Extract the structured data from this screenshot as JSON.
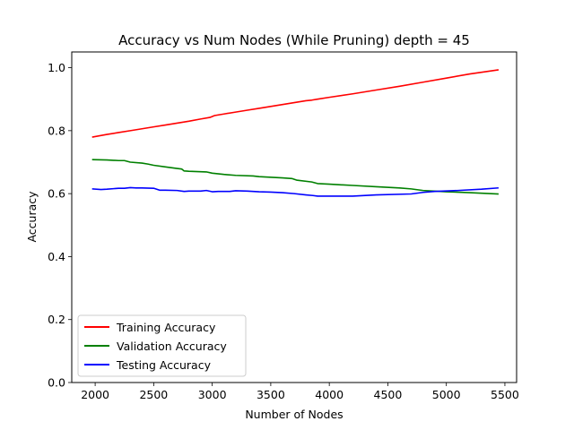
{
  "chart_data": {
    "type": "line",
    "title": "Accuracy vs Num Nodes (While Pruning) depth = 45",
    "xlabel": "Number of Nodes",
    "ylabel": "Accuracy",
    "xlim": [
      1800,
      5600
    ],
    "ylim": [
      0.0,
      1.05
    ],
    "xticks": [
      2000,
      2500,
      3000,
      3500,
      4000,
      4500,
      5000,
      5500
    ],
    "yticks": [
      0.0,
      0.2,
      0.4,
      0.6,
      0.8,
      1.0
    ],
    "grid": false,
    "legend_position": "lower-left",
    "series": [
      {
        "name": "Training Accuracy",
        "color": "#ff0000",
        "x": [
          1980,
          2100,
          2200,
          2300,
          2400,
          2500,
          2600,
          2700,
          2800,
          2900,
          2980,
          3020,
          3100,
          3200,
          3300,
          3400,
          3500,
          3600,
          3700,
          3800,
          3850,
          3900,
          4000,
          4200,
          4400,
          4600,
          4800,
          5000,
          5200,
          5440
        ],
        "values": [
          0.78,
          0.788,
          0.794,
          0.8,
          0.806,
          0.812,
          0.818,
          0.824,
          0.83,
          0.837,
          0.842,
          0.848,
          0.853,
          0.859,
          0.865,
          0.871,
          0.877,
          0.883,
          0.889,
          0.895,
          0.897,
          0.9,
          0.906,
          0.917,
          0.929,
          0.941,
          0.954,
          0.967,
          0.98,
          0.993
        ]
      },
      {
        "name": "Validation Accuracy",
        "color": "#008000",
        "x": [
          1980,
          2100,
          2200,
          2250,
          2300,
          2400,
          2450,
          2500,
          2600,
          2700,
          2740,
          2760,
          2800,
          2950,
          3000,
          3100,
          3200,
          3350,
          3400,
          3600,
          3680,
          3720,
          3850,
          3900,
          4000,
          4200,
          4400,
          4600,
          4700,
          4800,
          5000,
          5200,
          5440
        ],
        "values": [
          0.708,
          0.707,
          0.705,
          0.705,
          0.7,
          0.697,
          0.694,
          0.69,
          0.685,
          0.68,
          0.678,
          0.672,
          0.671,
          0.669,
          0.665,
          0.661,
          0.658,
          0.656,
          0.654,
          0.65,
          0.648,
          0.643,
          0.637,
          0.632,
          0.63,
          0.626,
          0.622,
          0.618,
          0.615,
          0.61,
          0.606,
          0.603,
          0.599
        ]
      },
      {
        "name": "Testing Accuracy",
        "color": "#0000ff",
        "x": [
          1980,
          2050,
          2100,
          2200,
          2250,
          2300,
          2350,
          2400,
          2500,
          2550,
          2600,
          2700,
          2760,
          2800,
          2900,
          2950,
          3000,
          3050,
          3100,
          3150,
          3200,
          3300,
          3400,
          3500,
          3600,
          3700,
          3800,
          3860,
          3900,
          4000,
          4200,
          4400,
          4700,
          4800,
          4900,
          5100,
          5300,
          5440
        ],
        "values": [
          0.615,
          0.613,
          0.614,
          0.617,
          0.617,
          0.619,
          0.618,
          0.618,
          0.617,
          0.611,
          0.611,
          0.61,
          0.607,
          0.608,
          0.608,
          0.61,
          0.606,
          0.607,
          0.607,
          0.607,
          0.609,
          0.608,
          0.606,
          0.605,
          0.603,
          0.6,
          0.596,
          0.594,
          0.592,
          0.592,
          0.592,
          0.596,
          0.599,
          0.604,
          0.607,
          0.61,
          0.614,
          0.618
        ]
      }
    ]
  }
}
